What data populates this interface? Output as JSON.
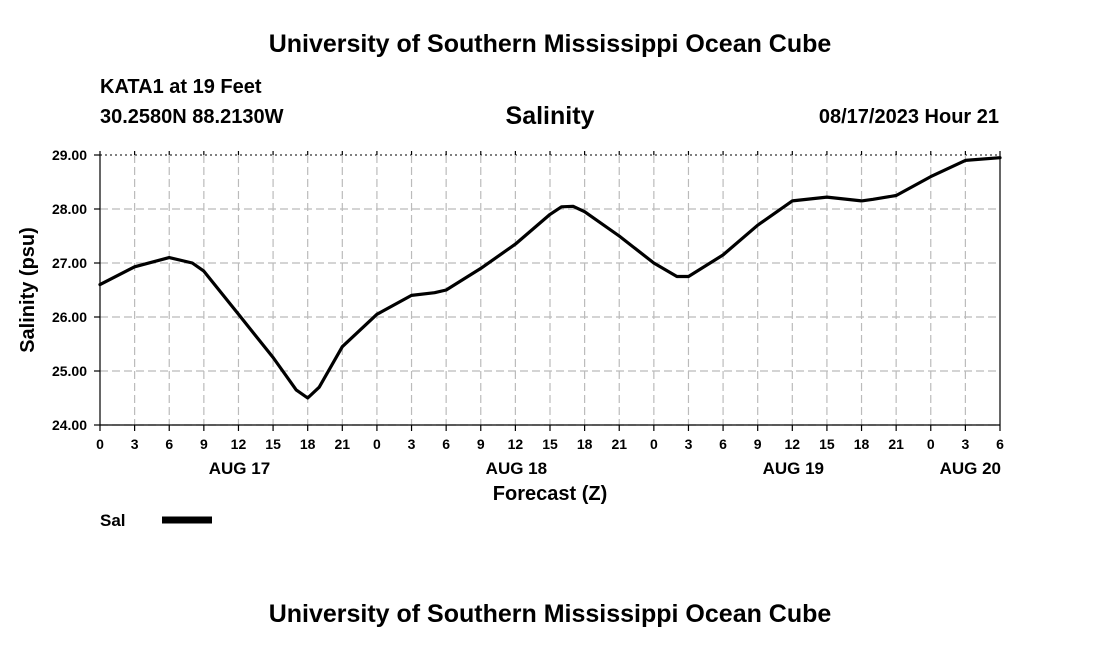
{
  "header": {
    "title": "University of Southern Mississippi Ocean Cube",
    "station": "KATA1 at 19 Feet",
    "coords": "30.2580N  88.2130W",
    "date": "08/17/2023 Hour 21"
  },
  "footer": {
    "title": "University of Southern Mississippi Ocean Cube"
  },
  "chart_data": {
    "type": "line",
    "title": "Salinity",
    "xlabel": "Forecast (Z)",
    "ylabel": "Salinity (psu)",
    "ylim": [
      24.0,
      29.0
    ],
    "yticks": [
      "24.00",
      "25.00",
      "26.00",
      "27.00",
      "28.00",
      "29.00"
    ],
    "xticks": [
      "0",
      "3",
      "6",
      "9",
      "12",
      "15",
      "18",
      "21",
      "0",
      "3",
      "6",
      "9",
      "12",
      "15",
      "18",
      "21",
      "0",
      "3",
      "6",
      "9",
      "12",
      "15",
      "18",
      "21",
      "0",
      "3",
      "6"
    ],
    "days": [
      "AUG 17",
      "AUG 18",
      "AUG 19",
      "AUG 20"
    ],
    "grid": true,
    "legend": "bottom-left",
    "color": "#000000",
    "series": [
      {
        "name": "Sal",
        "x": [
          0,
          3,
          6,
          8,
          9,
          12,
          15,
          17,
          18,
          19,
          21,
          24,
          27,
          29,
          30,
          33,
          36,
          39,
          40,
          41,
          42,
          45,
          48,
          50,
          51,
          54,
          57,
          60,
          63,
          66,
          67,
          69,
          72,
          75,
          78
        ],
        "values": [
          26.6,
          26.93,
          27.1,
          27.0,
          26.85,
          26.05,
          25.25,
          24.65,
          24.5,
          24.7,
          25.45,
          26.05,
          26.4,
          26.45,
          26.5,
          26.9,
          27.35,
          27.9,
          28.04,
          28.05,
          27.95,
          27.5,
          27.0,
          26.75,
          26.75,
          27.15,
          27.7,
          28.15,
          28.22,
          28.15,
          28.18,
          28.25,
          28.6,
          28.9,
          28.95
        ]
      }
    ]
  }
}
